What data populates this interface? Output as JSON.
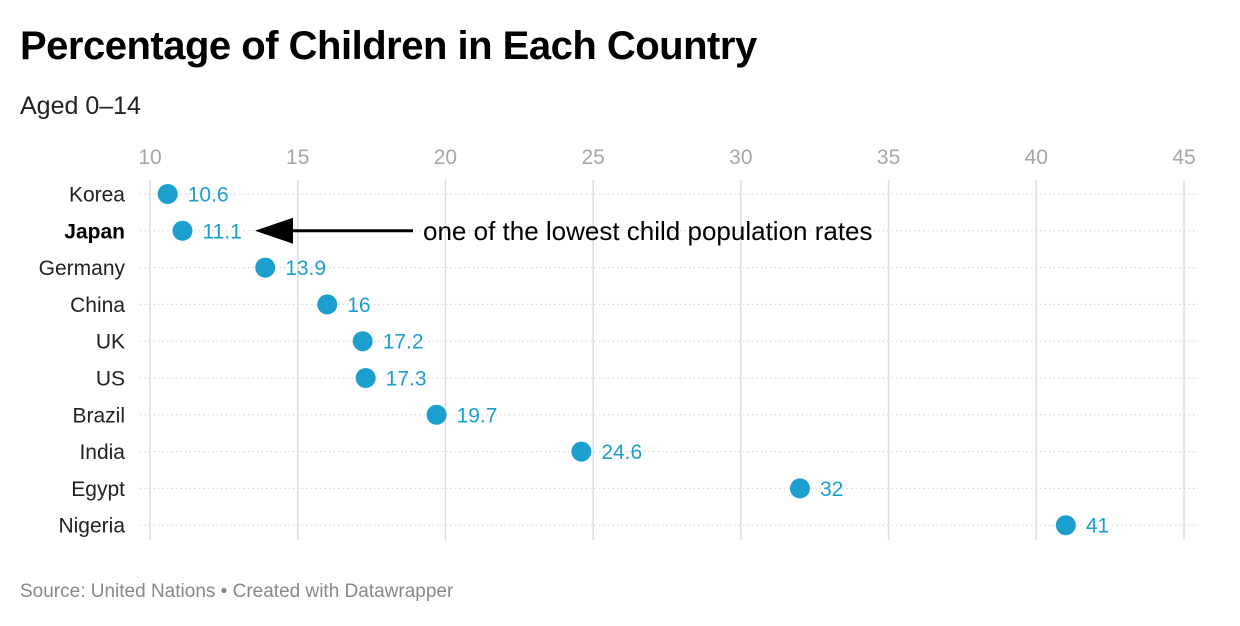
{
  "title": "Percentage of Children in Each Country",
  "subtitle": "Aged 0–14",
  "footer": {
    "source": "Source: United Nations",
    "separator": "•",
    "credit": "Created with Datawrapper"
  },
  "colors": {
    "dot": "#1a9fce",
    "label": "#1a9fce",
    "axis_text": "#a6a6a6",
    "category_text": "#222222",
    "grid": "#dddddd",
    "annotation": "#000000"
  },
  "chart_data": {
    "type": "scatter",
    "orientation": "horizontal dot plot",
    "title": "Percentage of Children in Each Country",
    "subtitle": "Aged 0–14",
    "categories": [
      "Korea",
      "Japan",
      "Germany",
      "China",
      "UK",
      "US",
      "Brazil",
      "India",
      "Egypt",
      "Nigeria"
    ],
    "highlighted_category": "Japan",
    "values": [
      10.6,
      11.1,
      13.9,
      16,
      17.2,
      17.3,
      19.7,
      24.6,
      32,
      41
    ],
    "value_labels": [
      "10.6",
      "11.1",
      "13.9",
      "16",
      "17.2",
      "17.3",
      "19.7",
      "24.6",
      "32",
      "41"
    ],
    "xlim": [
      10,
      45
    ],
    "x_ticks": [
      10,
      15,
      20,
      25,
      30,
      35,
      40,
      45
    ],
    "x_tick_labels": [
      "10",
      "15",
      "20",
      "25",
      "30",
      "35",
      "40",
      "45"
    ],
    "x_axis_position": "top",
    "grid": true,
    "legend": "none",
    "xlabel": "",
    "ylabel": "",
    "annotations": [
      {
        "text": "one of the lowest child population rates",
        "target": "Japan",
        "arrow": true
      }
    ]
  }
}
